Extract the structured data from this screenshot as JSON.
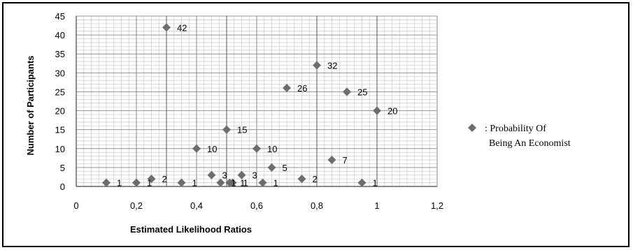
{
  "chart_data": {
    "type": "scatter",
    "title": "",
    "xlabel": "Estimated Likelihood Ratios",
    "ylabel": "Number of Participants",
    "xlim": [
      0,
      1.2
    ],
    "ylim": [
      0,
      45
    ],
    "x_ticks": [
      "0",
      "0,2",
      "0,4",
      "0,6",
      "0,8",
      "1",
      "1,2"
    ],
    "y_ticks": [
      "0",
      "5",
      "10",
      "15",
      "20",
      "25",
      "30",
      "35",
      "40",
      "45"
    ],
    "grid": true,
    "legend_position": "right",
    "marker_color": "#6d6d6d",
    "series": [
      {
        "name": ": Probability Of Being An Economist",
        "points": [
          {
            "x": 0.1,
            "y": 1,
            "label": "1"
          },
          {
            "x": 0.2,
            "y": 1,
            "label": "1"
          },
          {
            "x": 0.25,
            "y": 2,
            "label": "2"
          },
          {
            "x": 0.3,
            "y": 42,
            "label": "42"
          },
          {
            "x": 0.35,
            "y": 1,
            "label": "1"
          },
          {
            "x": 0.4,
            "y": 10,
            "label": "10"
          },
          {
            "x": 0.45,
            "y": 3,
            "label": "3"
          },
          {
            "x": 0.48,
            "y": 1,
            "label": "1"
          },
          {
            "x": 0.5,
            "y": 15,
            "label": "15"
          },
          {
            "x": 0.51,
            "y": 1,
            "label": "1"
          },
          {
            "x": 0.52,
            "y": 1,
            "label": "1"
          },
          {
            "x": 0.55,
            "y": 3,
            "label": "3"
          },
          {
            "x": 0.6,
            "y": 10,
            "label": "10"
          },
          {
            "x": 0.62,
            "y": 1,
            "label": "1"
          },
          {
            "x": 0.65,
            "y": 5,
            "label": "5"
          },
          {
            "x": 0.7,
            "y": 26,
            "label": "26"
          },
          {
            "x": 0.75,
            "y": 2,
            "label": "2"
          },
          {
            "x": 0.8,
            "y": 32,
            "label": "32"
          },
          {
            "x": 0.85,
            "y": 7,
            "label": "7"
          },
          {
            "x": 0.9,
            "y": 25,
            "label": "25"
          },
          {
            "x": 0.95,
            "y": 1,
            "label": "1"
          },
          {
            "x": 1.0,
            "y": 20,
            "label": "20"
          }
        ]
      }
    ]
  },
  "legend": {
    "line1": ": Probability Of",
    "line2": "Being An Economist"
  }
}
